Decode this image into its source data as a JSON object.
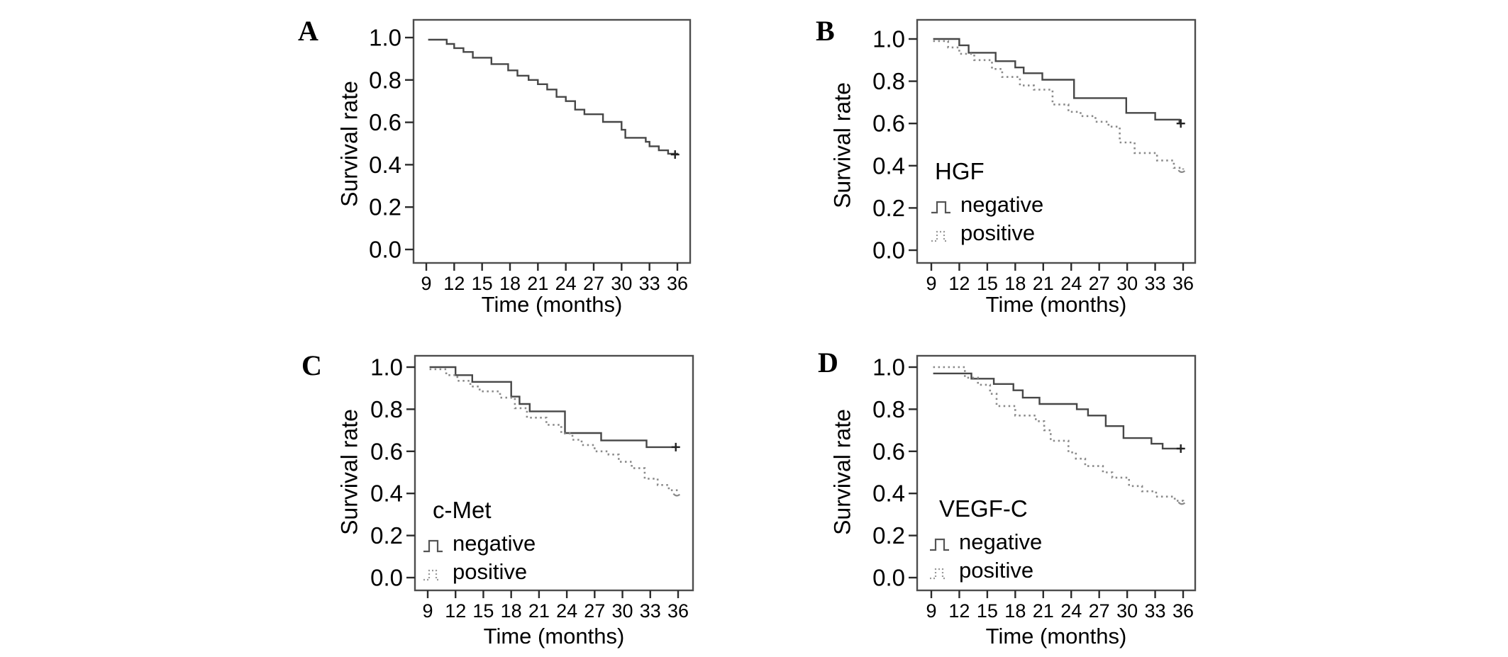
{
  "figure": {
    "background": "#ffffff",
    "colors": {
      "solid_line": "#474747",
      "dotted_line": "#8a8a8a",
      "axis_frame": "#4d4d4d",
      "tick": "#2b2b2b",
      "text": "#000000"
    }
  },
  "chart_data": [
    {
      "type": "line",
      "curve_style": "kaplan-meier-step",
      "panel": "A",
      "xlabel": "Time (months)",
      "ylabel": "Survival rate",
      "x_ticks": [
        9,
        12,
        15,
        18,
        21,
        24,
        27,
        30,
        33,
        36
      ],
      "y_tick_labels": [
        "1.0",
        "0.8",
        "0.6",
        "0.4",
        "0.2",
        "0.0"
      ],
      "xlim": [
        7.6,
        37.4
      ],
      "ylim": [
        0.0,
        1.05
      ],
      "grid": false,
      "series": [
        {
          "style": "solid",
          "censor": "plus",
          "points": [
            [
              9.2,
              0.99
            ],
            [
              11.2,
              0.97
            ],
            [
              12,
              0.95
            ],
            [
              13,
              0.932
            ],
            [
              14,
              0.905
            ],
            [
              16,
              0.875
            ],
            [
              17.8,
              0.845
            ],
            [
              18.8,
              0.82
            ],
            [
              20,
              0.8
            ],
            [
              21,
              0.78
            ],
            [
              22,
              0.755
            ],
            [
              23,
              0.72
            ],
            [
              24,
              0.7
            ],
            [
              25,
              0.66
            ],
            [
              26,
              0.638
            ],
            [
              28,
              0.602
            ],
            [
              30,
              0.565
            ],
            [
              30.4,
              0.527
            ],
            [
              32.6,
              0.508
            ],
            [
              33,
              0.487
            ],
            [
              34,
              0.468
            ],
            [
              35,
              0.452
            ],
            [
              36,
              0.448
            ]
          ]
        }
      ]
    },
    {
      "type": "line",
      "curve_style": "kaplan-meier-step",
      "panel": "B",
      "xlabel": "Time (months)",
      "ylabel": "Survival rate",
      "legend": {
        "title": "HGF",
        "entries": [
          "negative",
          "positive"
        ],
        "position": "lower-left-inside"
      },
      "x_ticks": [
        9,
        12,
        15,
        18,
        21,
        24,
        27,
        30,
        33,
        36
      ],
      "y_tick_labels": [
        "1.0",
        "0.8",
        "0.6",
        "0.4",
        "0.2",
        "0.0"
      ],
      "xlim": [
        7.6,
        37.4
      ],
      "ylim": [
        0.0,
        1.05
      ],
      "grid": false,
      "series": [
        {
          "name": "negative",
          "style": "solid",
          "censor": "plus",
          "points": [
            [
              9.2,
              1.0
            ],
            [
              12,
              0.97
            ],
            [
              13,
              0.935
            ],
            [
              15.9,
              0.895
            ],
            [
              18,
              0.865
            ],
            [
              18.9,
              0.838
            ],
            [
              20.9,
              0.807
            ],
            [
              24.3,
              0.72
            ],
            [
              29.9,
              0.65
            ],
            [
              33,
              0.618
            ],
            [
              35.6,
              0.6
            ],
            [
              36,
              0.6
            ]
          ]
        },
        {
          "name": "positive",
          "style": "dotted",
          "censor": "hook",
          "points": [
            [
              9.2,
              0.99
            ],
            [
              10.8,
              0.96
            ],
            [
              12,
              0.93
            ],
            [
              13.6,
              0.9
            ],
            [
              15.5,
              0.858
            ],
            [
              16.6,
              0.82
            ],
            [
              18.5,
              0.78
            ],
            [
              20,
              0.76
            ],
            [
              22,
              0.69
            ],
            [
              23.7,
              0.655
            ],
            [
              25,
              0.635
            ],
            [
              26.6,
              0.608
            ],
            [
              28,
              0.585
            ],
            [
              29.2,
              0.51
            ],
            [
              30.8,
              0.46
            ],
            [
              33.2,
              0.425
            ],
            [
              35,
              0.39
            ],
            [
              36,
              0.382
            ]
          ]
        }
      ]
    },
    {
      "type": "line",
      "curve_style": "kaplan-meier-step",
      "panel": "C",
      "xlabel": "Time (months)",
      "ylabel": "Survival rate",
      "legend": {
        "title": "c-Met",
        "entries": [
          "negative",
          "positive"
        ],
        "position": "lower-left-inside"
      },
      "x_ticks": [
        9,
        12,
        15,
        18,
        21,
        24,
        27,
        30,
        33,
        36
      ],
      "y_tick_labels": [
        "1.0",
        "0.8",
        "0.6",
        "0.4",
        "0.2",
        "0.0"
      ],
      "xlim": [
        7.6,
        37.4
      ],
      "ylim": [
        0.0,
        1.05
      ],
      "grid": false,
      "series": [
        {
          "name": "negative",
          "style": "solid",
          "censor": "plus",
          "points": [
            [
              9.2,
              1.0
            ],
            [
              12,
              0.962
            ],
            [
              13.8,
              0.93
            ],
            [
              18,
              0.86
            ],
            [
              18.9,
              0.825
            ],
            [
              20,
              0.79
            ],
            [
              23.8,
              0.687
            ],
            [
              27.7,
              0.652
            ],
            [
              32.6,
              0.62
            ],
            [
              36,
              0.62
            ]
          ]
        },
        {
          "name": "positive",
          "style": "dotted",
          "censor": "hook",
          "points": [
            [
              9.2,
              0.99
            ],
            [
              11,
              0.962
            ],
            [
              12.2,
              0.935
            ],
            [
              13.6,
              0.908
            ],
            [
              14.6,
              0.885
            ],
            [
              16.8,
              0.855
            ],
            [
              18.4,
              0.805
            ],
            [
              19.7,
              0.76
            ],
            [
              21.8,
              0.726
            ],
            [
              23.4,
              0.685
            ],
            [
              24.6,
              0.655
            ],
            [
              25.6,
              0.63
            ],
            [
              27,
              0.6
            ],
            [
              28.5,
              0.585
            ],
            [
              29.6,
              0.55
            ],
            [
              31,
              0.52
            ],
            [
              32.4,
              0.47
            ],
            [
              33.8,
              0.44
            ],
            [
              35,
              0.415
            ],
            [
              36,
              0.402
            ]
          ]
        }
      ]
    },
    {
      "type": "line",
      "curve_style": "kaplan-meier-step",
      "panel": "D",
      "xlabel": "Time (months)",
      "ylabel": "Survival rate",
      "legend": {
        "title": "VEGF-C",
        "entries": [
          "negative",
          "positive"
        ],
        "position": "lower-left-inside"
      },
      "x_ticks": [
        9,
        12,
        15,
        18,
        21,
        24,
        27,
        30,
        33,
        36
      ],
      "y_tick_labels": [
        "1.0",
        "0.8",
        "0.6",
        "0.4",
        "0.2",
        "0.0"
      ],
      "xlim": [
        7.6,
        37.4
      ],
      "ylim": [
        0.0,
        1.05
      ],
      "grid": false,
      "series": [
        {
          "name": "negative",
          "style": "solid",
          "censor": "plus",
          "points": [
            [
              9.2,
              0.97
            ],
            [
              13.3,
              0.945
            ],
            [
              15.7,
              0.92
            ],
            [
              17.8,
              0.89
            ],
            [
              18.8,
              0.855
            ],
            [
              20.6,
              0.825
            ],
            [
              24.6,
              0.8
            ],
            [
              25.8,
              0.77
            ],
            [
              27.7,
              0.72
            ],
            [
              29.6,
              0.663
            ],
            [
              32.6,
              0.636
            ],
            [
              33.8,
              0.613
            ],
            [
              36,
              0.613
            ]
          ]
        },
        {
          "name": "positive",
          "style": "dotted",
          "censor": "hook",
          "points": [
            [
              9.2,
              1.0
            ],
            [
              12.6,
              0.95
            ],
            [
              14,
              0.916
            ],
            [
              15.3,
              0.873
            ],
            [
              16,
              0.815
            ],
            [
              18,
              0.77
            ],
            [
              20.2,
              0.743
            ],
            [
              21.1,
              0.7
            ],
            [
              21.8,
              0.65
            ],
            [
              23.7,
              0.595
            ],
            [
              24.5,
              0.565
            ],
            [
              25.5,
              0.53
            ],
            [
              27.4,
              0.5
            ],
            [
              28.4,
              0.475
            ],
            [
              30.2,
              0.435
            ],
            [
              31.6,
              0.41
            ],
            [
              33.1,
              0.385
            ],
            [
              35.1,
              0.365
            ],
            [
              36,
              0.362
            ]
          ]
        }
      ]
    }
  ]
}
